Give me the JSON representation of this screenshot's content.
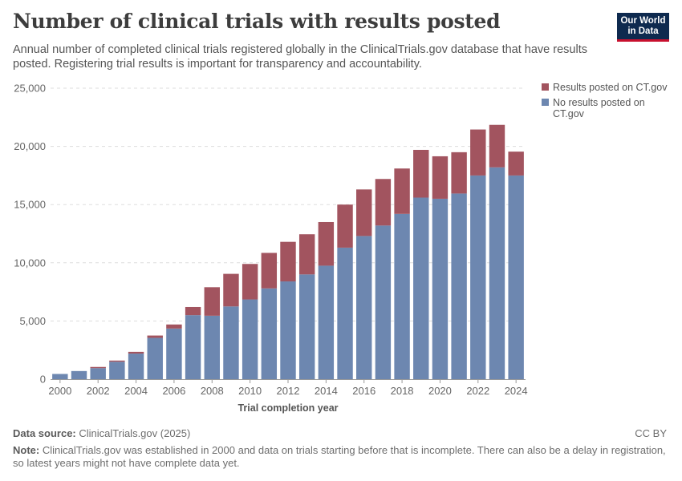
{
  "title": "Number of clinical trials with results posted",
  "subtitle": "Annual number of completed clinical trials registered globally in the ClinicalTrials.gov database that have results posted. Registering trial results is important for transparency and accountability.",
  "logo": {
    "line1": "Our World",
    "line2": "in Data"
  },
  "source": {
    "label": "Data source:",
    "text": "ClinicalTrials.gov (2025)"
  },
  "note": {
    "label": "Note:",
    "text": "ClinicalTrials.gov was established in 2000 and data on trials starting before that is incomplete. There can also be a delay in registration, so latest years might not have complete data yet."
  },
  "license": "CC BY",
  "colors": {
    "results": "#a2545f",
    "no_results": "#6d87b0"
  },
  "chart_data": {
    "type": "bar",
    "stacked": true,
    "title": "Number of clinical trials with results posted",
    "xlabel": "Trial completion year",
    "ylabel": "",
    "ylim": [
      0,
      25000
    ],
    "yticks": [
      0,
      5000,
      10000,
      15000,
      20000,
      25000
    ],
    "ytick_labels": [
      "0",
      "5,000",
      "10,000",
      "15,000",
      "20,000",
      "25,000"
    ],
    "xtick_labels": [
      "2000",
      "2002",
      "2004",
      "2006",
      "2008",
      "2010",
      "2012",
      "2014",
      "2016",
      "2018",
      "2020",
      "2022",
      "2024"
    ],
    "categories": [
      "2000",
      "2001",
      "2002",
      "2003",
      "2004",
      "2005",
      "2006",
      "2007",
      "2008",
      "2009",
      "2010",
      "2011",
      "2012",
      "2013",
      "2014",
      "2015",
      "2016",
      "2017",
      "2018",
      "2019",
      "2020",
      "2021",
      "2022",
      "2023",
      "2024"
    ],
    "series": [
      {
        "name": "No results posted on CT.gov",
        "color": "#6d87b0",
        "values": [
          450,
          700,
          950,
          1500,
          2200,
          3550,
          4350,
          5500,
          5450,
          6250,
          6850,
          7800,
          8400,
          9000,
          9750,
          11300,
          12300,
          13200,
          14200,
          15600,
          15500,
          15950,
          17500,
          18200,
          17500
        ]
      },
      {
        "name": "Results posted on CT.gov",
        "color": "#a2545f",
        "values": [
          0,
          0,
          100,
          100,
          150,
          200,
          350,
          700,
          2450,
          2800,
          3050,
          3050,
          3400,
          3450,
          3750,
          3700,
          4000,
          4000,
          3900,
          4100,
          3650,
          3550,
          3950,
          3650,
          2050
        ]
      }
    ],
    "grid": true,
    "legend": "right"
  }
}
